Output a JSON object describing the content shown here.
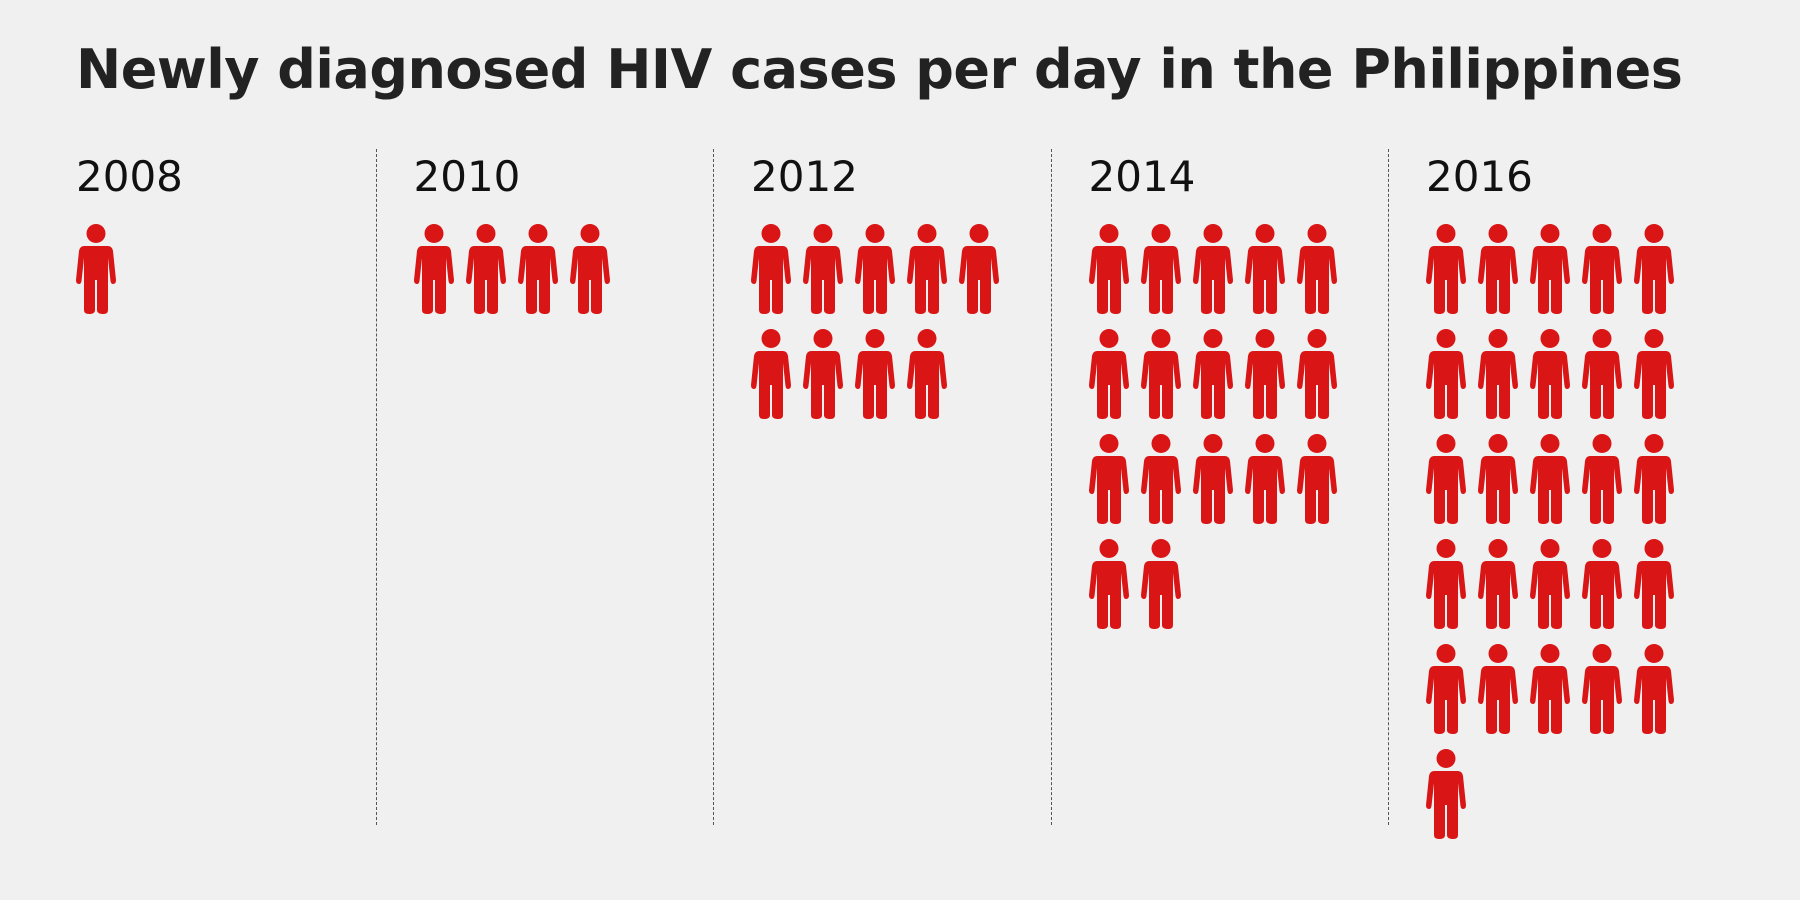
{
  "title": "Newly diagnosed HIV cases per day in the Philippines",
  "colors": {
    "icon": "#d91515",
    "background": "#f0f0f0"
  },
  "chart_data": {
    "type": "pictogram",
    "title": "Newly diagnosed HIV cases per day in the Philippines",
    "icon": "person-icon",
    "icons_per_row": 5,
    "categories": [
      "2008",
      "2010",
      "2012",
      "2014",
      "2016"
    ],
    "values": [
      1,
      4,
      9,
      17,
      26
    ]
  }
}
